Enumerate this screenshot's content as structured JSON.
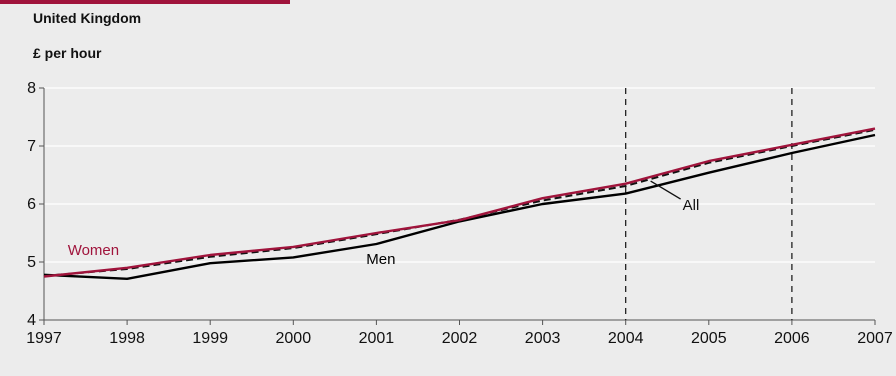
{
  "chart_data": {
    "type": "line",
    "subtitle": "United Kingdom",
    "ylabel": "£ per hour",
    "x": [
      "1997",
      "1998",
      "1999",
      "2000",
      "2001",
      "2002",
      "2003",
      "2004",
      "2005",
      "2006",
      "2007"
    ],
    "ylim": [
      4,
      8
    ],
    "yticks": [
      "4",
      "5",
      "6",
      "7",
      "8"
    ],
    "grid": true,
    "vlines": [
      "2004",
      "2006"
    ],
    "series": [
      {
        "name": "Women",
        "color": "#a0143c",
        "style": "solid",
        "values": [
          4.75,
          4.9,
          5.12,
          5.26,
          5.5,
          5.72,
          6.1,
          6.35,
          6.74,
          7.02,
          7.3
        ]
      },
      {
        "name": "All",
        "color": "#111111",
        "style": "dashed",
        "values": [
          4.76,
          4.88,
          5.09,
          5.24,
          5.48,
          5.73,
          6.06,
          6.31,
          6.71,
          7.0,
          7.28
        ]
      },
      {
        "name": "Men",
        "color": "#000000",
        "style": "solid",
        "values": [
          4.78,
          4.71,
          4.98,
          5.08,
          5.31,
          5.7,
          6.0,
          6.18,
          6.54,
          6.88,
          7.19
        ]
      }
    ]
  }
}
